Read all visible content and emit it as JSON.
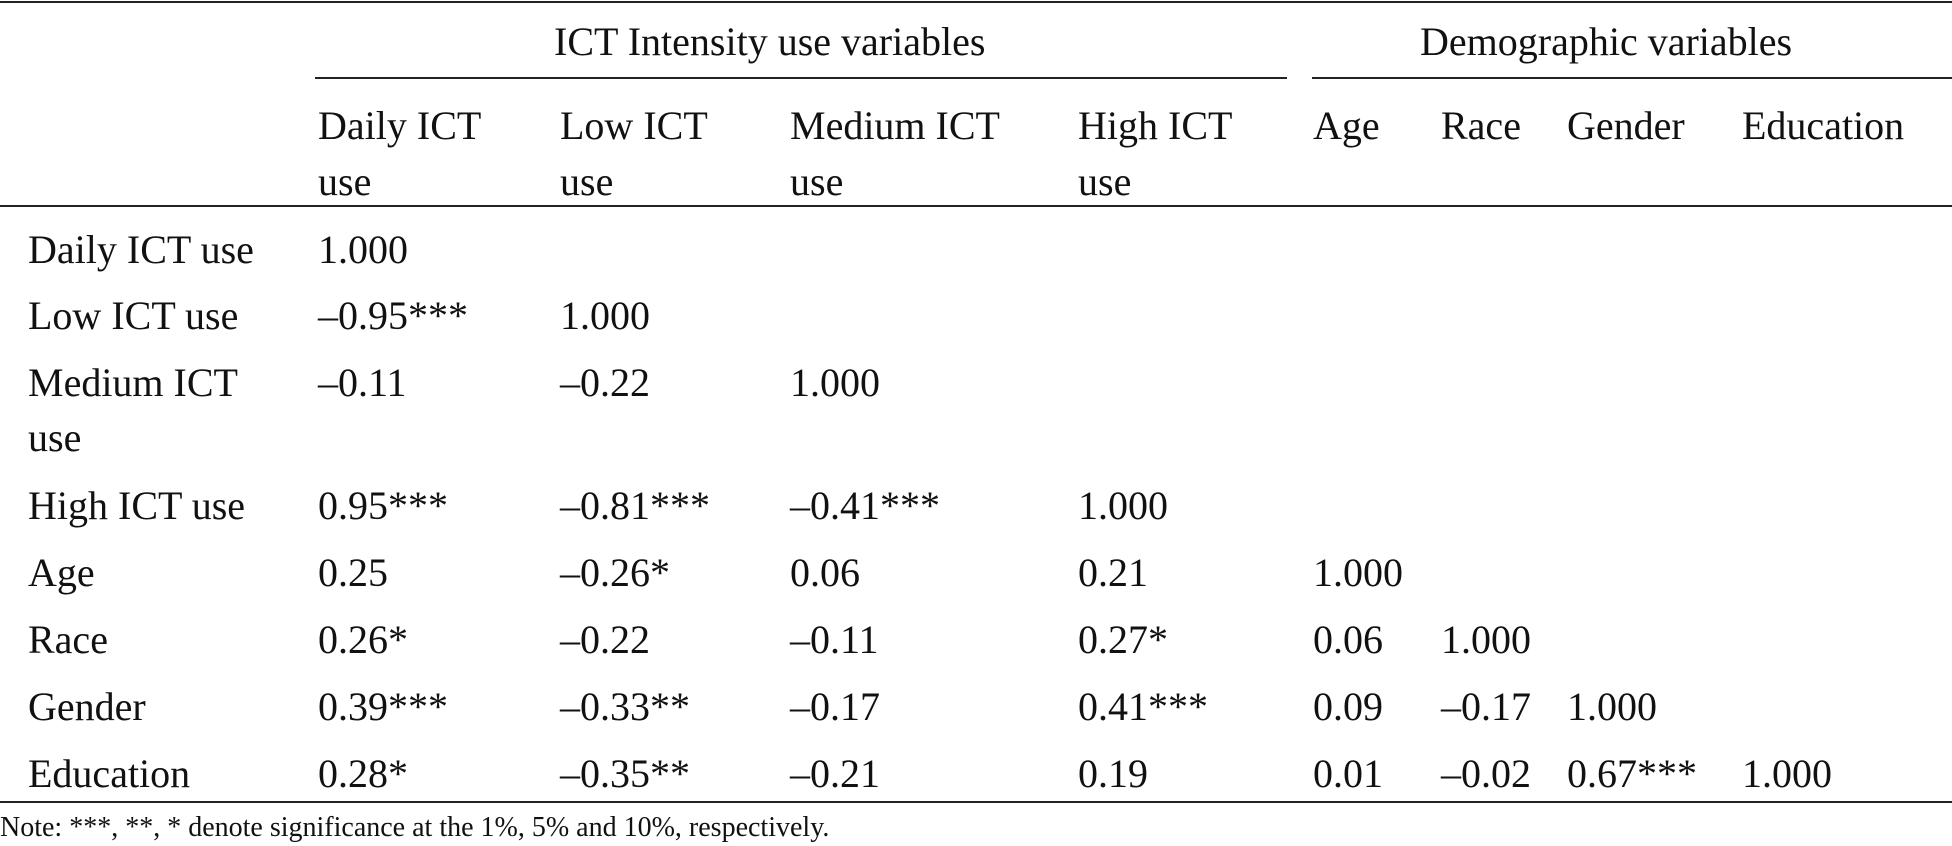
{
  "table": {
    "groups": {
      "ict": "ICT Intensity use variables",
      "demographic": "Demographic variables"
    },
    "columns": [
      {
        "line1": "Daily ICT",
        "line2": "use"
      },
      {
        "line1": "Low ICT",
        "line2": "use"
      },
      {
        "line1": "Medium ICT",
        "line2": "use"
      },
      {
        "line1": "High ICT",
        "line2": "use"
      },
      {
        "line1": "Age",
        "line2": ""
      },
      {
        "line1": "Race",
        "line2": ""
      },
      {
        "line1": "Gender",
        "line2": ""
      },
      {
        "line1": "Education",
        "line2": ""
      }
    ],
    "rows": [
      {
        "label_line1": "Daily ICT use",
        "label_line2": "",
        "cells": [
          "1.000",
          "",
          "",
          "",
          "",
          "",
          "",
          ""
        ]
      },
      {
        "label_line1": "Low ICT use",
        "label_line2": "",
        "cells": [
          "–0.95***",
          "1.000",
          "",
          "",
          "",
          "",
          "",
          ""
        ]
      },
      {
        "label_line1": "Medium ICT",
        "label_line2": "use",
        "cells": [
          "–0.11",
          "–0.22",
          "1.000",
          "",
          "",
          "",
          "",
          ""
        ]
      },
      {
        "label_line1": "High ICT use",
        "label_line2": "",
        "cells": [
          "0.95***",
          "–0.81***",
          "–0.41***",
          "1.000",
          "",
          "",
          "",
          ""
        ]
      },
      {
        "label_line1": "Age",
        "label_line2": "",
        "cells": [
          "0.25",
          "–0.26*",
          "0.06",
          "0.21",
          "1.000",
          "",
          "",
          ""
        ]
      },
      {
        "label_line1": "Race",
        "label_line2": "",
        "cells": [
          "0.26*",
          "–0.22",
          "–0.11",
          "0.27*",
          "0.06",
          "1.000",
          "",
          ""
        ]
      },
      {
        "label_line1": "Gender",
        "label_line2": "",
        "cells": [
          "0.39***",
          "–0.33**",
          "–0.17",
          "0.41***",
          "0.09",
          "–0.17",
          "1.000",
          ""
        ]
      },
      {
        "label_line1": "Education",
        "label_line2": "",
        "cells": [
          "0.28*",
          "–0.35**",
          "–0.21",
          "0.19",
          "0.01",
          "–0.02",
          "0.67***",
          "1.000"
        ]
      }
    ],
    "note": "Note: ***, **, * denote significance at the 1%, 5% and 10%, respectively."
  }
}
